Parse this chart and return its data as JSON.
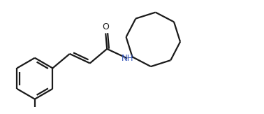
{
  "background_color": "#ffffff",
  "line_color": "#1a1a1a",
  "label_color_N": "#3355bb",
  "label_color_O": "#1a1a1a",
  "line_width": 1.6,
  "figsize": [
    3.78,
    1.63
  ],
  "dpi": 100
}
